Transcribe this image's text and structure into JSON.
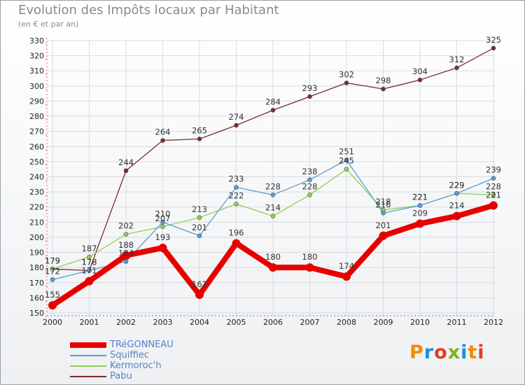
{
  "title": "Evolution des Impôts locaux par Habitant",
  "subtitle": "(en € et par an)",
  "brand": {
    "p": "P",
    "r": "r",
    "o": "o",
    "x": "x",
    "i1": "i",
    "t": "t",
    "i2": "i"
  },
  "chart_data": {
    "type": "line",
    "x": [
      "2000",
      "2001",
      "2002",
      "2003",
      "2004",
      "2005",
      "2006",
      "2007",
      "2008",
      "2009",
      "2010",
      "2011",
      "2012"
    ],
    "ylim": [
      150,
      330
    ],
    "yticks": [
      150,
      160,
      170,
      180,
      190,
      200,
      210,
      220,
      230,
      240,
      250,
      260,
      270,
      280,
      290,
      300,
      310,
      320,
      330
    ],
    "grid": true,
    "legend_position": "bottom-left",
    "series": [
      {
        "name": "TRéGONNEAU",
        "color": "#e80000",
        "values": [
          155,
          171,
          188,
          193,
          162,
          196,
          180,
          180,
          174,
          201,
          209,
          214,
          221
        ]
      },
      {
        "name": "Squiffiec",
        "color": "#5b9bd5",
        "values": [
          172,
          178,
          184,
          210,
          201,
          233,
          228,
          238,
          251,
          216,
          221,
          229,
          239
        ]
      },
      {
        "name": "Kermoroc'h",
        "color": "#8fd14f",
        "values": [
          179,
          187,
          202,
          207,
          213,
          222,
          214,
          228,
          245,
          218,
          221,
          229,
          228
        ]
      },
      {
        "name": "Pabu",
        "color": "#7b2c2c",
        "values": [
          179,
          178,
          244,
          264,
          265,
          274,
          284,
          293,
          302,
          298,
          304,
          312,
          325
        ]
      }
    ]
  }
}
